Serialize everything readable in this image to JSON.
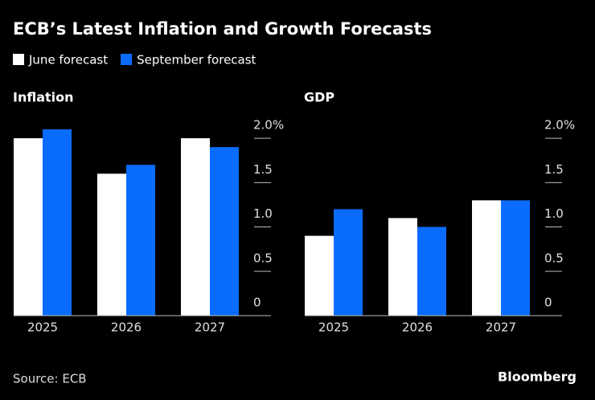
{
  "title": "ECB’s Latest Inflation and Growth Forecasts",
  "source": "Source: ECB",
  "brand": "Bloomberg",
  "chart_data": [
    {
      "type": "bar",
      "title": "Inflation",
      "categories": [
        "2025",
        "2026",
        "2027"
      ],
      "series": [
        {
          "name": "June forecast",
          "color": "#ffffff",
          "values": [
            2.0,
            1.6,
            2.0
          ]
        },
        {
          "name": "September forecast",
          "color": "#0a6cff",
          "values": [
            2.1,
            1.7,
            1.9
          ]
        }
      ],
      "ylim": [
        0,
        2.2
      ],
      "yticks": [
        {
          "value": 2,
          "label": "2.0%"
        },
        1.5,
        {
          "value": 1,
          "label": "1.0"
        },
        0.5,
        0
      ]
    },
    {
      "type": "bar",
      "title": "GDP",
      "categories": [
        "2025",
        "2026",
        "2027"
      ],
      "series": [
        {
          "name": "June forecast",
          "color": "#ffffff",
          "values": [
            0.9,
            1.1,
            1.3
          ]
        },
        {
          "name": "September forecast",
          "color": "#0a6cff",
          "values": [
            1.2,
            1.0,
            1.3
          ]
        }
      ],
      "ylim": [
        0,
        2.2
      ],
      "yticks": [
        {
          "value": 2,
          "label": "2.0%"
        },
        1.5,
        {
          "value": 1,
          "label": "1.0"
        },
        0.5,
        0
      ]
    }
  ]
}
